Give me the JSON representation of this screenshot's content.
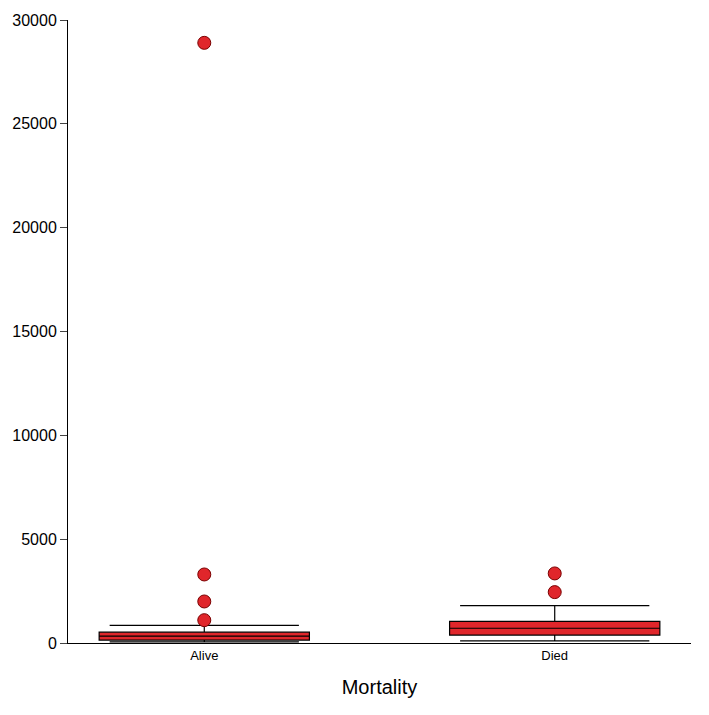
{
  "chart_data": {
    "type": "box",
    "x_label": "Mortality",
    "color": "#e0262b",
    "categories": [
      "Alive",
      "Died"
    ],
    "whisker_low": [
      50,
      100
    ],
    "q1": [
      140,
      380
    ],
    "median": [
      330,
      710
    ],
    "q3": [
      520,
      1040
    ],
    "whisker_high": [
      850,
      1800
    ],
    "outliers": [
      [
        28900,
        3300,
        2000,
        1100
      ],
      [
        3350,
        2450
      ]
    ],
    "ylim": [
      0,
      30000
    ],
    "yticks": [
      0,
      5000,
      10000,
      15000,
      20000,
      25000,
      30000
    ],
    "grid": false,
    "marker": "circle"
  }
}
